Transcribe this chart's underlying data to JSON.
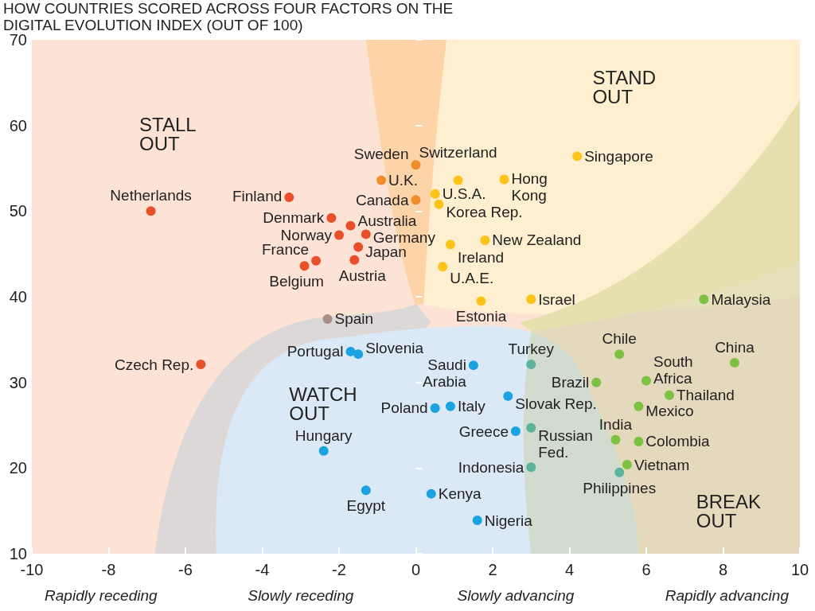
{
  "chart_data": {
    "type": "scatter",
    "title": "HOW COUNTRIES SCORED ACROSS FOUR FACTORS ON THE DIGITAL EVOLUTION INDEX (OUT OF 100)",
    "xlim": [
      -10,
      10
    ],
    "xticks": [
      -10,
      -8,
      -6,
      -4,
      -2,
      0,
      2,
      4,
      6,
      8,
      10
    ],
    "ylim": [
      10,
      70
    ],
    "yticks": [
      10,
      20,
      30,
      40,
      50,
      60,
      70
    ],
    "grid": false,
    "marker": "circle",
    "series": [
      {
        "color": "#e8502a",
        "x": [
          -6.9,
          -3.3,
          -2.2,
          -1.7,
          -2.0,
          -1.3,
          -1.5,
          -1.6,
          -2.6,
          -2.9,
          -5.6
        ],
        "values": [
          50.0,
          51.6,
          49.2,
          48.3,
          47.2,
          47.3,
          45.8,
          44.3,
          44.2,
          43.6,
          32.1
        ]
      },
      {
        "color": "#f08c2a",
        "x": [
          0.0,
          -0.9,
          0.0
        ],
        "values": [
          55.4,
          53.6,
          51.3
        ]
      },
      {
        "color": "#fcc419",
        "x": [
          1.1,
          0.5,
          0.6,
          2.3,
          4.2,
          1.8,
          0.9,
          0.7,
          1.7,
          3.0
        ],
        "values": [
          53.6,
          52.0,
          50.8,
          53.7,
          56.4,
          46.6,
          46.1,
          43.5,
          39.5,
          39.7
        ]
      },
      {
        "color": "#a89085",
        "x": [
          -2.3
        ],
        "values": [
          37.4
        ]
      },
      {
        "color": "#1aa3e0",
        "x": [
          -1.7,
          -1.5,
          1.5,
          2.4,
          0.9,
          0.5,
          2.6,
          -2.4,
          -1.3,
          0.4,
          1.6
        ],
        "values": [
          33.6,
          33.3,
          32.0,
          28.4,
          27.2,
          27.0,
          24.3,
          22.0,
          17.4,
          17.0,
          13.9
        ]
      },
      {
        "color": "#5bb39a",
        "x": [
          3.0,
          3.0,
          3.0,
          5.3
        ],
        "values": [
          32.1,
          24.7,
          20.1,
          19.5
        ]
      },
      {
        "color": "#7dc142",
        "x": [
          7.5,
          5.3,
          8.3,
          4.7,
          6.0,
          6.6,
          5.8,
          5.2,
          5.8,
          5.5
        ],
        "values": [
          39.7,
          33.3,
          32.3,
          30.0,
          30.2,
          28.5,
          27.2,
          23.3,
          23.1,
          20.4
        ]
      }
    ],
    "annotations": [
      "STALL OUT",
      "STAND OUT",
      "WATCH OUT",
      "BREAK OUT",
      "Rapidly receding",
      "Slowly receding",
      "Slowly advancing",
      "Rapidly advancing",
      {
        "text": "Netherlands",
        "x": -6.9,
        "y": 50.0
      },
      {
        "text": "Finland",
        "x": -3.3,
        "y": 51.6
      },
      {
        "text": "Denmark",
        "x": -2.2,
        "y": 49.2
      },
      {
        "text": "Australia",
        "x": -1.7,
        "y": 48.3
      },
      {
        "text": "Norway",
        "x": -2.0,
        "y": 47.2
      },
      {
        "text": "Germany",
        "x": -1.3,
        "y": 47.3
      },
      {
        "text": "Japan",
        "x": -1.5,
        "y": 45.8
      },
      {
        "text": "Austria",
        "x": -1.6,
        "y": 44.3
      },
      {
        "text": "France",
        "x": -2.6,
        "y": 44.2
      },
      {
        "text": "Belgium",
        "x": -2.9,
        "y": 43.6
      },
      {
        "text": "Czech Rep.",
        "x": -5.6,
        "y": 32.1
      },
      {
        "text": "Sweden",
        "x": 0.0,
        "y": 55.4
      },
      {
        "text": "U.K.",
        "x": -0.9,
        "y": 53.6
      },
      {
        "text": "Canada",
        "x": 0.0,
        "y": 51.3
      },
      {
        "text": "Switzerland",
        "x": 1.1,
        "y": 53.6
      },
      {
        "text": "U.S.A.",
        "x": 0.5,
        "y": 52.0
      },
      {
        "text": "Korea Rep.",
        "x": 0.6,
        "y": 50.8
      },
      {
        "text": "Hong Kong",
        "x": 2.3,
        "y": 53.7
      },
      {
        "text": "Singapore",
        "x": 4.2,
        "y": 56.4
      },
      {
        "text": "New Zealand",
        "x": 1.8,
        "y": 46.6
      },
      {
        "text": "Ireland",
        "x": 0.9,
        "y": 46.1
      },
      {
        "text": "U.A.E.",
        "x": 0.7,
        "y": 43.5
      },
      {
        "text": "Estonia",
        "x": 1.7,
        "y": 39.5
      },
      {
        "text": "Israel",
        "x": 3.0,
        "y": 39.7
      },
      {
        "text": "Spain",
        "x": -2.3,
        "y": 37.4
      },
      {
        "text": "Portugal",
        "x": -1.7,
        "y": 33.6
      },
      {
        "text": "Slovenia",
        "x": -1.5,
        "y": 33.3
      },
      {
        "text": "Saudi Arabia",
        "x": 1.5,
        "y": 32.0
      },
      {
        "text": "Slovak Rep.",
        "x": 2.4,
        "y": 28.4
      },
      {
        "text": "Italy",
        "x": 0.9,
        "y": 27.2
      },
      {
        "text": "Poland",
        "x": 0.5,
        "y": 27.0
      },
      {
        "text": "Greece",
        "x": 2.6,
        "y": 24.3
      },
      {
        "text": "Hungary",
        "x": -2.4,
        "y": 22.0
      },
      {
        "text": "Egypt",
        "x": -1.3,
        "y": 17.4
      },
      {
        "text": "Kenya",
        "x": 0.4,
        "y": 17.0
      },
      {
        "text": "Nigeria",
        "x": 1.6,
        "y": 13.9
      },
      {
        "text": "Turkey",
        "x": 3.0,
        "y": 32.1
      },
      {
        "text": "Russian Fed.",
        "x": 3.0,
        "y": 24.7
      },
      {
        "text": "Indonesia",
        "x": 3.0,
        "y": 20.1
      },
      {
        "text": "Philippines",
        "x": 5.3,
        "y": 19.5
      },
      {
        "text": "Malaysia",
        "x": 7.5,
        "y": 39.7
      },
      {
        "text": "Chile",
        "x": 5.3,
        "y": 33.3
      },
      {
        "text": "China",
        "x": 8.3,
        "y": 32.3
      },
      {
        "text": "Brazil",
        "x": 4.7,
        "y": 30.0
      },
      {
        "text": "South Africa",
        "x": 6.0,
        "y": 30.2
      },
      {
        "text": "Thailand",
        "x": 6.6,
        "y": 28.5
      },
      {
        "text": "Mexico",
        "x": 5.8,
        "y": 27.2
      },
      {
        "text": "India",
        "x": 5.2,
        "y": 23.3
      },
      {
        "text": "Colombia",
        "x": 5.8,
        "y": 23.1
      },
      {
        "text": "Vietnam",
        "x": 5.5,
        "y": 20.4
      }
    ]
  }
}
